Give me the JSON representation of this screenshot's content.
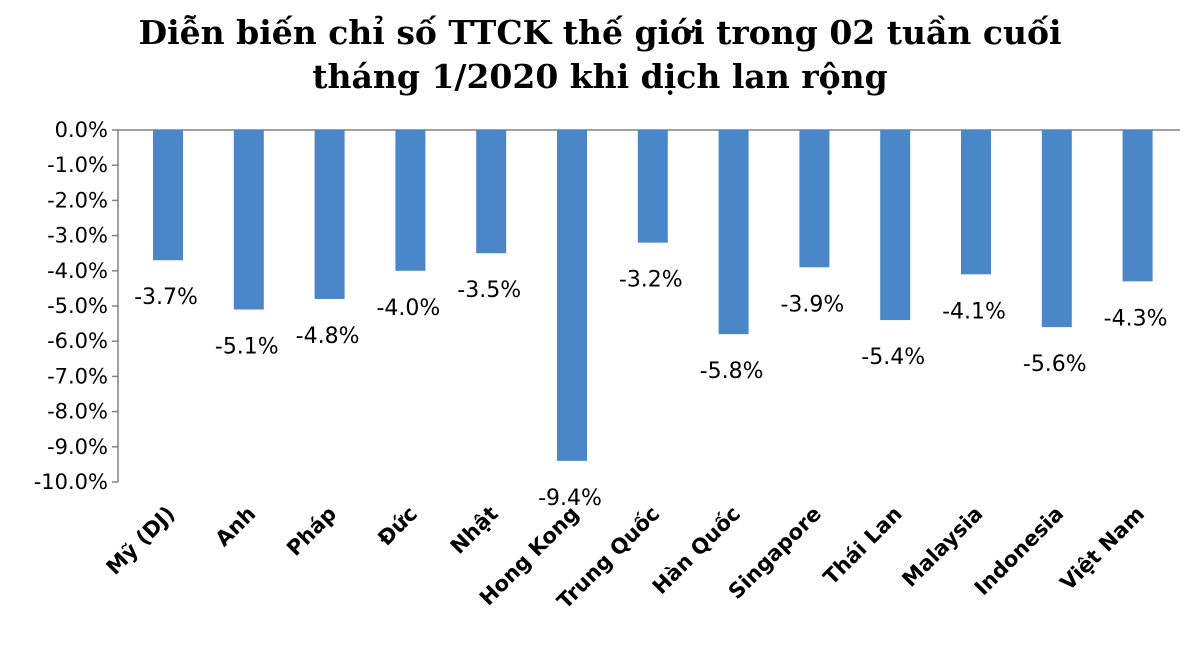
{
  "chart_data": {
    "type": "bar",
    "title_lines": [
      "Diễn biến chỉ số TTCK thế giới trong 02 tuần cuối",
      "tháng 1/2020 khi dịch lan rộng"
    ],
    "categories": [
      "Mỹ (DJ)",
      "Anh",
      "Pháp",
      "Đức",
      "Nhật",
      "Hong Kong",
      "Trung Quốc",
      "Hàn Quốc",
      "Singapore",
      "Thái Lan",
      "Malaysia",
      "Indonesia",
      "Việt Nam"
    ],
    "values": [
      -3.7,
      -5.1,
      -4.8,
      -4.0,
      -3.5,
      -9.4,
      -3.2,
      -5.8,
      -3.9,
      -5.4,
      -4.1,
      -5.6,
      -4.3
    ],
    "data_labels": [
      "-3.7%",
      "-5.1%",
      "-4.8%",
      "-4.0%",
      "-3.5%",
      "-9.4%",
      "-3.2%",
      "-5.8%",
      "-3.9%",
      "-5.4%",
      "-4.1%",
      "-5.6%",
      "-4.3%"
    ],
    "ylim": [
      -10.0,
      0.0
    ],
    "yticks": [
      "0.0%",
      "-1.0%",
      "-2.0%",
      "-3.0%",
      "-4.0%",
      "-5.0%",
      "-6.0%",
      "-7.0%",
      "-8.0%",
      "-9.0%",
      "-10.0%"
    ],
    "grid": false,
    "bar_color": "#4a86c8",
    "xlabel": "",
    "ylabel": ""
  }
}
